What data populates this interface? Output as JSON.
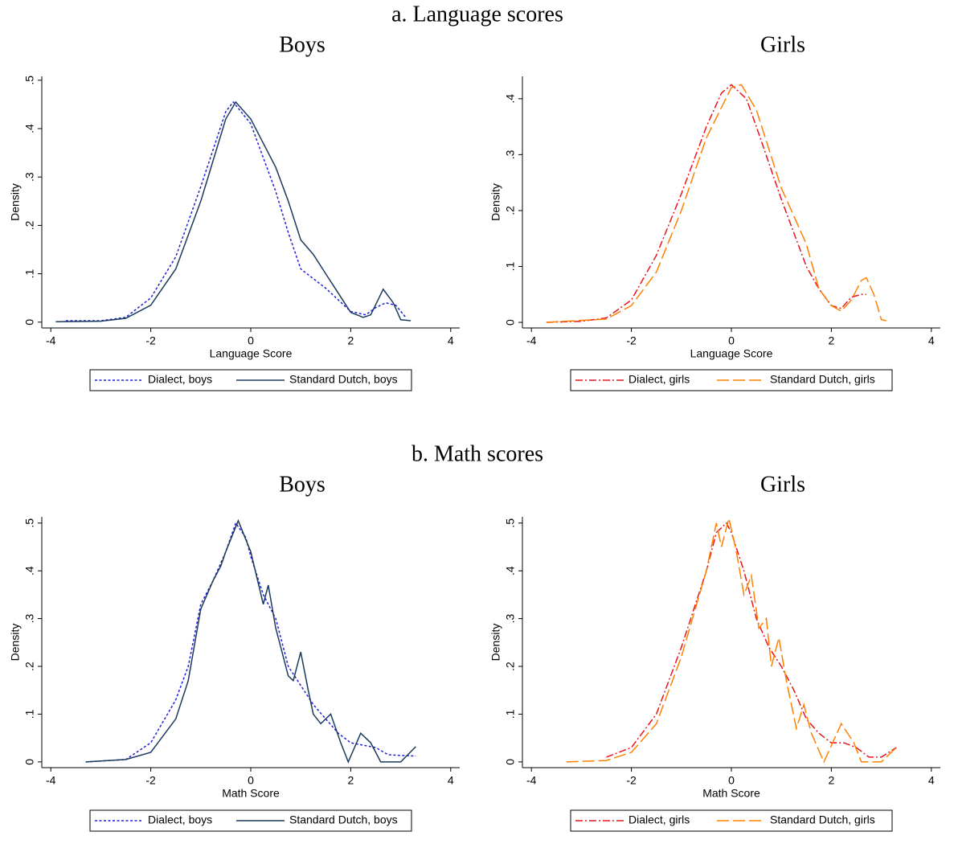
{
  "sections": [
    "a. Language scores",
    "b. Math scores"
  ],
  "chart_data": [
    {
      "type": "line",
      "title": "Boys",
      "x_label": "Language Score",
      "y_label": "Density",
      "xlim": [
        -4.18,
        4.18
      ],
      "ylim": [
        -0.012,
        0.508
      ],
      "xticks": [
        -4,
        -2,
        0,
        2,
        4
      ],
      "yticks": [
        0,
        {
          "value": 0.1,
          "label": ".1"
        },
        {
          "value": 0.2,
          "label": ".2"
        },
        {
          "value": 0.3,
          "label": ".3"
        },
        {
          "value": 0.4,
          "label": ".4"
        },
        {
          "value": 0.5,
          "label": ".5"
        }
      ],
      "legend": "bottom",
      "series": [
        {
          "name": "Dialect, boys",
          "color": "#1f1fd6",
          "line_style": "dotted",
          "x": [
            -3.7,
            -3,
            -2.5,
            -2,
            -1.5,
            -1,
            -0.5,
            -0.35,
            0,
            0.5,
            0.75,
            1,
            1.5,
            2,
            2.3,
            2.5,
            2.7,
            2.9,
            3.1
          ],
          "values": [
            0.003,
            0.003,
            0.01,
            0.05,
            0.135,
            0.28,
            0.435,
            0.455,
            0.41,
            0.27,
            0.185,
            0.11,
            0.07,
            0.022,
            0.015,
            0.03,
            0.04,
            0.035,
            0.01
          ]
        },
        {
          "name": "Standard Dutch, boys",
          "color": "#1a3a5c",
          "line_style": "solid",
          "x": [
            -3.9,
            -3,
            -2.5,
            -2,
            -1.5,
            -1,
            -0.5,
            -0.3,
            0,
            0.5,
            0.75,
            1,
            1.25,
            1.5,
            1.75,
            2,
            2.25,
            2.4,
            2.65,
            2.85,
            3,
            3.2
          ],
          "values": [
            0.001,
            0.002,
            0.008,
            0.035,
            0.11,
            0.25,
            0.42,
            0.455,
            0.42,
            0.32,
            0.25,
            0.17,
            0.14,
            0.1,
            0.06,
            0.02,
            0.01,
            0.015,
            0.068,
            0.04,
            0.005,
            0.003
          ]
        }
      ]
    },
    {
      "type": "line",
      "title": "Girls",
      "x_label": "Language Score",
      "y_label": "Density",
      "xlim": [
        -4.18,
        4.18
      ],
      "ylim": [
        -0.01,
        0.44
      ],
      "xticks": [
        -4,
        -2,
        0,
        2,
        4
      ],
      "yticks": [
        0,
        {
          "value": 0.1,
          "label": ".1"
        },
        {
          "value": 0.2,
          "label": ".2"
        },
        {
          "value": 0.3,
          "label": ".3"
        },
        {
          "value": 0.4,
          "label": ".4"
        }
      ],
      "legend": "bottom",
      "series": [
        {
          "name": "Dialect, girls",
          "color": "#e8141e",
          "line_style": "dashdot",
          "x": [
            -3.7,
            -3,
            -2.5,
            -2,
            -1.5,
            -1,
            -0.5,
            -0.2,
            0,
            0.3,
            0.5,
            1,
            1.5,
            1.75,
            2,
            2.2,
            2.4,
            2.6,
            2.7
          ],
          "values": [
            0,
            0.002,
            0.008,
            0.04,
            0.12,
            0.23,
            0.35,
            0.41,
            0.425,
            0.4,
            0.35,
            0.22,
            0.1,
            0.06,
            0.03,
            0.025,
            0.045,
            0.05,
            0.05
          ]
        },
        {
          "name": "Standard Dutch, girls",
          "color": "#ff8000",
          "line_style": "longdash",
          "x": [
            -3.7,
            -2.5,
            -2,
            -1.5,
            -1,
            -0.5,
            0,
            0.2,
            0.5,
            1,
            1.25,
            1.5,
            1.75,
            2,
            2.2,
            2.4,
            2.6,
            2.7,
            2.85,
            3,
            3.1
          ],
          "values": [
            0,
            0.006,
            0.03,
            0.09,
            0.2,
            0.33,
            0.42,
            0.425,
            0.38,
            0.24,
            0.19,
            0.14,
            0.06,
            0.03,
            0.02,
            0.04,
            0.075,
            0.08,
            0.05,
            0.005,
            0.003
          ]
        }
      ]
    },
    {
      "type": "line",
      "title": "Boys",
      "x_label": "Math Score",
      "y_label": "Density",
      "xlim": [
        -4.18,
        4.18
      ],
      "ylim": [
        -0.012,
        0.513
      ],
      "xticks": [
        -4,
        -2,
        0,
        2,
        4
      ],
      "yticks": [
        0,
        {
          "value": 0.1,
          "label": ".1"
        },
        {
          "value": 0.2,
          "label": ".2"
        },
        {
          "value": 0.3,
          "label": ".3"
        },
        {
          "value": 0.4,
          "label": ".4"
        },
        {
          "value": 0.5,
          "label": ".5"
        }
      ],
      "legend": "bottom",
      "series": [
        {
          "name": "Dialect, boys",
          "color": "#1f1fd6",
          "line_style": "dotted",
          "x": [
            -3.3,
            -2.5,
            -2,
            -1.5,
            -1.25,
            -1,
            -0.75,
            -0.5,
            -0.3,
            -0.1,
            0,
            0.25,
            0.5,
            0.75,
            1,
            1.25,
            1.5,
            1.75,
            2,
            2.25,
            2.5,
            2.75,
            3.3
          ],
          "values": [
            0,
            0.005,
            0.04,
            0.13,
            0.2,
            0.33,
            0.38,
            0.44,
            0.5,
            0.47,
            0.43,
            0.35,
            0.3,
            0.2,
            0.16,
            0.12,
            0.09,
            0.06,
            0.04,
            0.035,
            0.03,
            0.015,
            0.012
          ]
        },
        {
          "name": "Standard Dutch, boys",
          "color": "#1a3a5c",
          "line_style": "solid",
          "x": [
            -3.3,
            -2.5,
            -2,
            -1.5,
            -1.25,
            -1,
            -0.75,
            -0.6,
            -0.5,
            -0.25,
            0,
            0.25,
            0.35,
            0.5,
            0.75,
            0.85,
            1,
            1.15,
            1.25,
            1.4,
            1.6,
            1.8,
            1.95,
            2.2,
            2.4,
            2.6,
            3,
            3.3
          ],
          "values": [
            0,
            0.005,
            0.02,
            0.09,
            0.17,
            0.32,
            0.38,
            0.41,
            0.44,
            0.505,
            0.44,
            0.33,
            0.37,
            0.28,
            0.18,
            0.17,
            0.23,
            0.15,
            0.1,
            0.08,
            0.1,
            0.04,
            0,
            0.06,
            0.04,
            0,
            0,
            0.032
          ]
        }
      ]
    },
    {
      "type": "line",
      "title": "Girls",
      "x_label": "Math Score",
      "y_label": "Density",
      "xlim": [
        -4.18,
        4.18
      ],
      "ylim": [
        -0.012,
        0.513
      ],
      "xticks": [
        -4,
        -2,
        0,
        2,
        4
      ],
      "yticks": [
        0,
        {
          "value": 0.1,
          "label": ".1"
        },
        {
          "value": 0.2,
          "label": ".2"
        },
        {
          "value": 0.3,
          "label": ".3"
        },
        {
          "value": 0.4,
          "label": ".4"
        },
        {
          "value": 0.5,
          "label": ".5"
        }
      ],
      "legend": "bottom",
      "series": [
        {
          "name": "Dialect, girls",
          "color": "#e8141e",
          "line_style": "dashdot",
          "x": [
            -2.5,
            -2,
            -1.5,
            -1,
            -0.5,
            -0.3,
            -0.1,
            0,
            0.25,
            0.5,
            0.75,
            1,
            1.25,
            1.5,
            1.75,
            2,
            2.25,
            2.5,
            2.75,
            3,
            3.3
          ],
          "values": [
            0.01,
            0.03,
            0.1,
            0.24,
            0.4,
            0.48,
            0.5,
            0.48,
            0.4,
            0.3,
            0.24,
            0.2,
            0.15,
            0.09,
            0.06,
            0.04,
            0.04,
            0.03,
            0.01,
            0.01,
            0.03
          ]
        },
        {
          "name": "Standard Dutch, girls",
          "color": "#ff8000",
          "line_style": "longdash",
          "x": [
            -3.3,
            -2.5,
            -2,
            -1.5,
            -1,
            -0.5,
            -0.3,
            -0.2,
            -0.05,
            0.1,
            0.25,
            0.4,
            0.55,
            0.7,
            0.8,
            0.95,
            1.1,
            1.3,
            1.45,
            1.6,
            1.85,
            2.2,
            2.45,
            2.6,
            3,
            3.3
          ],
          "values": [
            0,
            0.003,
            0.02,
            0.08,
            0.22,
            0.4,
            0.5,
            0.45,
            0.51,
            0.44,
            0.35,
            0.39,
            0.28,
            0.3,
            0.2,
            0.26,
            0.17,
            0.07,
            0.12,
            0.06,
            0,
            0.08,
            0.04,
            0,
            0,
            0.03
          ]
        }
      ]
    }
  ]
}
